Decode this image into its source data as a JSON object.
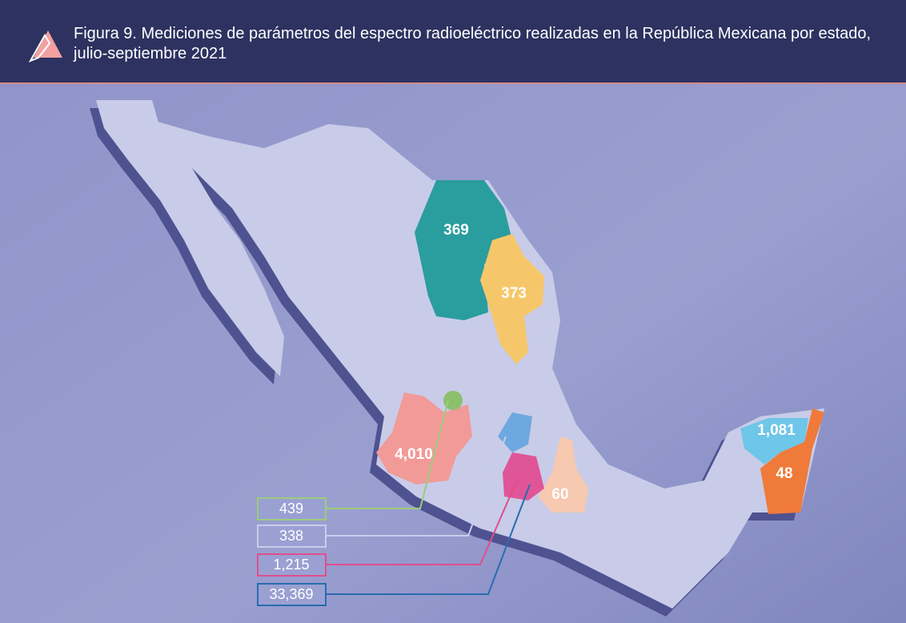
{
  "header": {
    "title": "Figura 9. Mediciones de parámetros del espectro radioeléctrico realizadas en la República Mexicana por estado, julio-septiembre 2021"
  },
  "map": {
    "regions": [
      {
        "label": "369",
        "color": "#2a9d9f"
      },
      {
        "label": "373",
        "color": "#f6c76a"
      },
      {
        "label": "4,010",
        "color": "#f29a98"
      },
      {
        "label": "60",
        "color": "#f6c9b0"
      },
      {
        "label": "1,081",
        "color": "#6ec6e8"
      },
      {
        "label": "48",
        "color": "#ef7a3a"
      }
    ],
    "callouts": [
      {
        "label": "439",
        "color": "#9ccc7a"
      },
      {
        "label": "338",
        "color": "#c9cdec"
      },
      {
        "label": "1,215",
        "color": "#e04e8c"
      },
      {
        "label": "33,369",
        "color": "#2a6bb0"
      }
    ]
  }
}
